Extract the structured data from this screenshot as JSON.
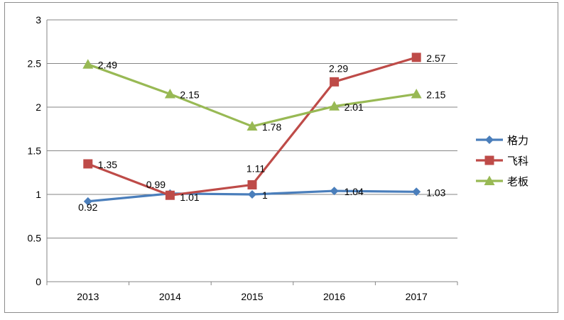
{
  "chart_data": {
    "type": "line",
    "title": "",
    "xlabel": "",
    "ylabel": "",
    "categories": [
      "2013",
      "2014",
      "2015",
      "2016",
      "2017"
    ],
    "ylim": [
      0,
      3
    ],
    "yticks": [
      "0",
      "0.5",
      "1",
      "1.5",
      "2",
      "2.5",
      "3"
    ],
    "grid": true,
    "legend_position": "right",
    "series": [
      {
        "name": "格力",
        "values": [
          0.92,
          1.01,
          1.0,
          1.04,
          1.03
        ],
        "labels": [
          "0.92",
          "1.01",
          "1",
          "1.04",
          "1.03"
        ],
        "color": "#4a7ebb",
        "marker": "diamond"
      },
      {
        "name": "飞科",
        "values": [
          1.35,
          0.99,
          1.11,
          2.29,
          2.57
        ],
        "labels": [
          "1.35",
          "0.99",
          "1.11",
          "2.29",
          "2.57"
        ],
        "color": "#be4b48",
        "marker": "square"
      },
      {
        "name": "老板",
        "values": [
          2.49,
          2.15,
          1.78,
          2.01,
          2.15
        ],
        "labels": [
          "2.49",
          "2.15",
          "1.78",
          "2.01",
          "2.15"
        ],
        "color": "#98b954",
        "marker": "triangle"
      }
    ]
  }
}
